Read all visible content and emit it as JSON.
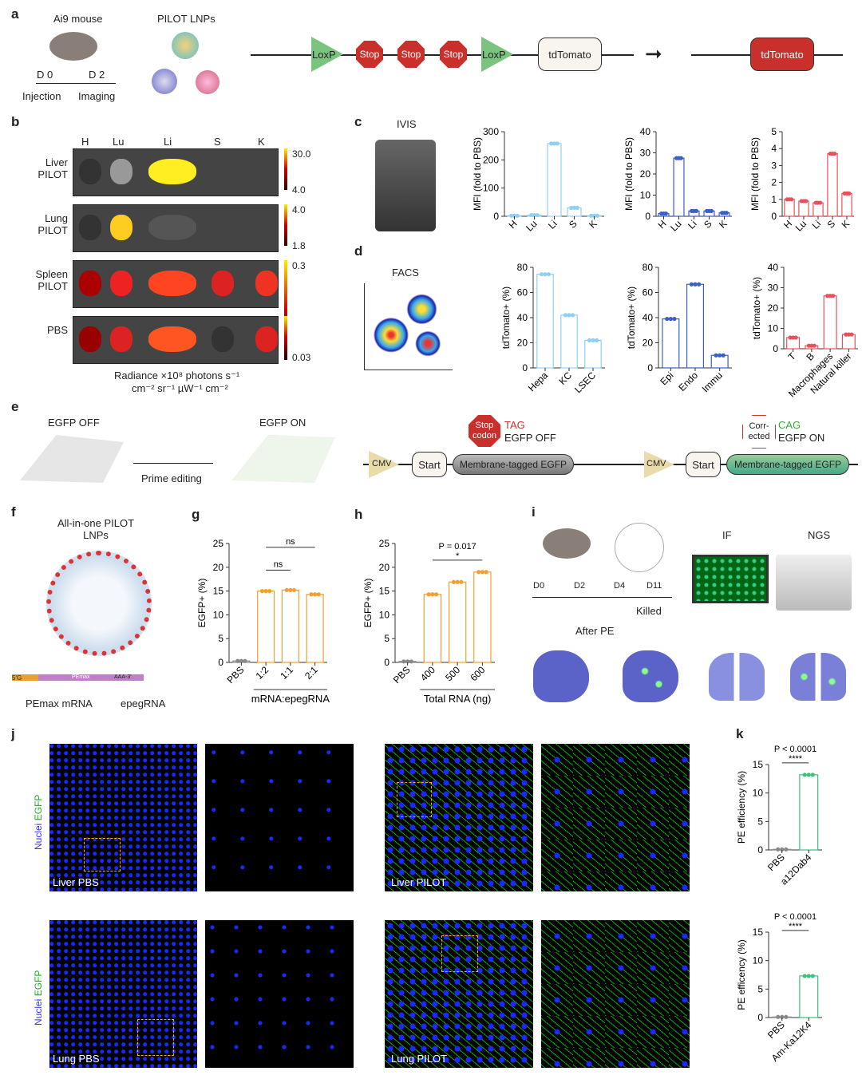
{
  "panels": {
    "a": "a",
    "b": "b",
    "c": "c",
    "d": "d",
    "e": "e",
    "f": "f",
    "g": "g",
    "h": "h",
    "i": "i",
    "j": "j",
    "k": "k"
  },
  "a": {
    "mouse": "Ai9 mouse",
    "lnps": "PILOT LNPs",
    "d0": "D 0",
    "d2": "D 2",
    "injection": "Injection",
    "imaging": "Imaging",
    "loxp": "LoxP",
    "stop": "Stop",
    "stop_num": "1",
    "tdtomato": "tdTomato"
  },
  "b": {
    "organs": [
      "H",
      "Lu",
      "Li",
      "S",
      "K"
    ],
    "rows": [
      {
        "label": "Liver\nPILOT",
        "max": "30.0",
        "min": "4.0"
      },
      {
        "label": "Lung\nPILOT",
        "max": "4.0",
        "min": "1.8"
      },
      {
        "label": "Spleen\nPILOT",
        "max": "0.3",
        "min": ""
      },
      {
        "label": "PBS",
        "max": "",
        "min": "0.03"
      }
    ],
    "radiance": "Radiance ×10⁸ photons s⁻¹",
    "radiance2": "cm⁻² sr⁻¹ µW⁻¹ cm⁻²"
  },
  "c": {
    "ivis": "IVIS"
  },
  "d": {
    "facs": "FACS"
  },
  "e": {
    "off": "EGFP OFF",
    "on": "EGFP ON",
    "prime": "Prime editing",
    "cmv": "CMV",
    "start": "Start",
    "mtegfp": "Membrane-tagged EGFP",
    "stop_codon": "Stop codon",
    "tag": "TAG",
    "egfp_off": "EGFP OFF",
    "corrected": "Corr-ected",
    "cag": "CAG",
    "egfp_on": "EGFP ON"
  },
  "f": {
    "title": "All-in-one PILOT LNPs",
    "pemax": "PEmax mRNA",
    "epeg": "epegRNA",
    "five": "5'G",
    "pe": "PEmax",
    "aaa": "AAA-3'"
  },
  "i": {
    "d0": "D0",
    "d2": "D2",
    "d4": "D4",
    "d11": "D11",
    "killed": "Killed",
    "after": "After PE",
    "if": "IF",
    "ngs": "NGS"
  },
  "j": {
    "ylabel_nuclei": "Nuclei",
    "ylabel_egfp": "EGFP",
    "liver_pbs": "Liver PBS",
    "liver_pilot": "Liver PILOT",
    "lung_pbs": "Lung PBS",
    "lung_pilot": "Lung PILOT"
  },
  "colors": {
    "light_blue": "#8fd0f0",
    "blue": "#3a5fc8",
    "red": "#e8505b",
    "orange": "#f0a030",
    "green": "#3cc07a",
    "grey": "#888888"
  },
  "chart_data": [
    {
      "id": "c1",
      "type": "bar",
      "categories": [
        "H",
        "Lu",
        "Li",
        "S",
        "K"
      ],
      "values": [
        2,
        4,
        258,
        30,
        2
      ],
      "ylabel": "MFI (fold to PBS)",
      "ylim": [
        0,
        300
      ],
      "ticks": [
        0,
        100,
        200,
        300
      ],
      "color": "#8fd0f0"
    },
    {
      "id": "c2",
      "type": "bar",
      "categories": [
        "H",
        "Lu",
        "Li",
        "S",
        "K"
      ],
      "values": [
        1.3,
        27.5,
        2.5,
        2.5,
        1.6
      ],
      "ylabel": "MFI (fold to PBS)",
      "ylim": [
        0,
        40
      ],
      "ticks": [
        0,
        10,
        20,
        30,
        40
      ],
      "color": "#3a5fc8"
    },
    {
      "id": "c3",
      "type": "bar",
      "categories": [
        "H",
        "Lu",
        "Li",
        "S",
        "K"
      ],
      "values": [
        1.0,
        0.9,
        0.8,
        3.7,
        1.35
      ],
      "ylabel": "MFI (fold to PBS)",
      "ylim": [
        0,
        5
      ],
      "ticks": [
        0,
        1,
        2,
        3,
        4,
        5
      ],
      "color": "#e8505b"
    },
    {
      "id": "d1",
      "type": "bar",
      "categories": [
        "Hepa",
        "KC",
        "LSEC"
      ],
      "values": [
        74.5,
        42,
        22
      ],
      "ylabel": "tdTomato+ (%)",
      "ylim": [
        0,
        80
      ],
      "ticks": [
        0,
        20,
        40,
        60,
        80
      ],
      "color": "#8fd0f0"
    },
    {
      "id": "d2",
      "type": "bar",
      "categories": [
        "Epi",
        "Endo",
        "Immu"
      ],
      "values": [
        39,
        66.5,
        10
      ],
      "ylabel": "tdTomato+ (%)",
      "ylim": [
        0,
        80
      ],
      "ticks": [
        0,
        20,
        40,
        60,
        80
      ],
      "color": "#3a5fc8"
    },
    {
      "id": "d3",
      "type": "bar",
      "categories": [
        "T",
        "B",
        "Macrophages",
        "Natural killer"
      ],
      "values": [
        5.5,
        1.5,
        26,
        7
      ],
      "ylabel": "tdTomato+ (%)",
      "ylim": [
        0,
        40
      ],
      "ticks": [
        0,
        10,
        20,
        30,
        40
      ],
      "color": "#e8505b"
    },
    {
      "id": "g",
      "type": "bar",
      "categories": [
        "PBS",
        "1:2",
        "1:1",
        "2:1"
      ],
      "values": [
        0.3,
        15,
        15.2,
        14.3
      ],
      "ylabel": "EGFP+ (%)",
      "xlabel": "mRNA:epegRNA",
      "ylim": [
        0,
        25
      ],
      "ticks": [
        0,
        5,
        10,
        15,
        20,
        25
      ],
      "color": "#f0a030",
      "annotations": [
        "ns",
        "ns"
      ]
    },
    {
      "id": "h",
      "type": "bar",
      "categories": [
        "PBS",
        "400",
        "500",
        "600"
      ],
      "values": [
        0.2,
        14.3,
        16.9,
        19
      ],
      "ylabel": "EGFP+ (%)",
      "xlabel": "Total RNA (ng)",
      "ylim": [
        0,
        25
      ],
      "ticks": [
        0,
        5,
        10,
        15,
        20,
        25
      ],
      "color": "#f0a030",
      "annotations": [
        "P = 0.017",
        "*"
      ]
    },
    {
      "id": "k1",
      "type": "bar",
      "categories": [
        "PBS",
        "a12Dab4"
      ],
      "values": [
        0.1,
        13.2
      ],
      "ylabel": "PE efficiency (%)",
      "ylim": [
        0,
        15
      ],
      "ticks": [
        0,
        5,
        10,
        15
      ],
      "color": "#3cc07a",
      "annotations": [
        "P < 0.0001",
        "****"
      ]
    },
    {
      "id": "k2",
      "type": "bar",
      "categories": [
        "PBS",
        "Am-Ka12K4"
      ],
      "values": [
        0.1,
        7.3
      ],
      "ylabel": "PE efficency (%)",
      "ylim": [
        0,
        15
      ],
      "ticks": [
        0,
        5,
        10,
        15
      ],
      "color": "#3cc07a",
      "annotations": [
        "P < 0.0001",
        "****"
      ]
    }
  ]
}
